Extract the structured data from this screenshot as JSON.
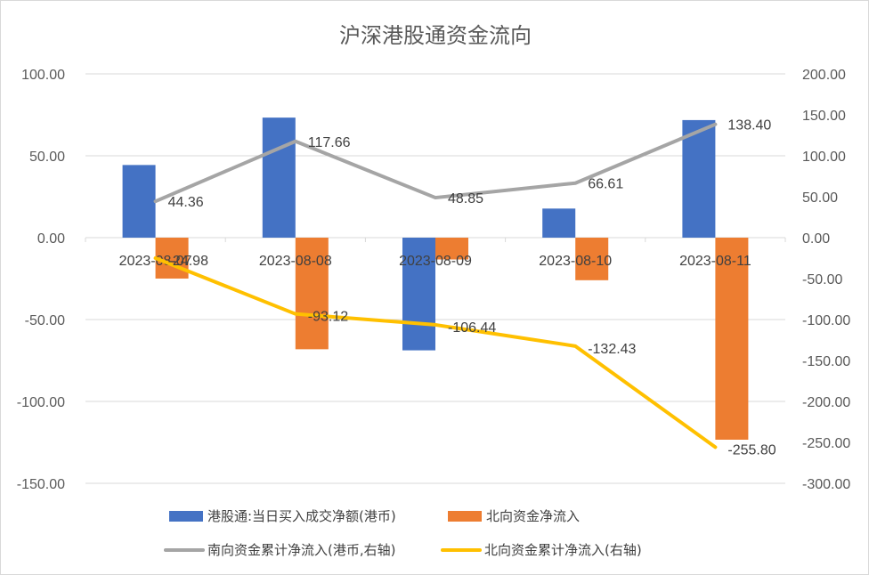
{
  "chart_data": {
    "type": "bar",
    "title": "沪深港股通资金流向",
    "categories": [
      "2023-08-07",
      "2023-08-08",
      "2023-08-09",
      "2023-08-10",
      "2023-08-11"
    ],
    "left_axis": {
      "ylim": [
        -150,
        100
      ],
      "ticks": [
        100,
        50,
        0,
        -50,
        -100,
        -150
      ],
      "tick_labels": [
        "100.00",
        "50.00",
        "0.00",
        "-50.00",
        "-100.00",
        "-150.00"
      ]
    },
    "right_axis": {
      "ylim": [
        -300,
        200
      ],
      "ticks": [
        200,
        150,
        100,
        50,
        0,
        -50,
        -100,
        -150,
        -200,
        -250,
        -300
      ],
      "tick_labels": [
        "200.00",
        "150.00",
        "100.00",
        "50.00",
        "0.00",
        "-50.00",
        "-100.00",
        "-150.00",
        "-200.00",
        "-250.00",
        "-300.00"
      ]
    },
    "grid": true,
    "legend_position": "bottom",
    "series": [
      {
        "name": "港股通:当日买入成交净额(港币)",
        "kind": "bar",
        "axis": "left",
        "color": "#4472C4",
        "values": [
          44.36,
          73.3,
          -68.8,
          17.76,
          71.79
        ]
      },
      {
        "name": "北向资金净流入",
        "kind": "bar",
        "axis": "left",
        "color": "#ED7D31",
        "values": [
          -24.98,
          -68.14,
          -13.32,
          -25.99,
          -123.37
        ]
      },
      {
        "name": "南向资金累计净流入(港币,右轴)",
        "kind": "line",
        "axis": "right",
        "color": "#A5A5A5",
        "values": [
          44.36,
          117.66,
          48.85,
          66.61,
          138.4
        ],
        "labels": [
          "44.36",
          "117.66",
          "48.85",
          "66.61",
          "138.40"
        ]
      },
      {
        "name": "北向资金累计净流入(右轴)",
        "kind": "line",
        "axis": "right",
        "color": "#FFC000",
        "values": [
          -24.98,
          -93.12,
          -106.44,
          -132.43,
          -255.8
        ],
        "labels": [
          "-24.98",
          "-93.12",
          "-106.44",
          "-132.43",
          "-255.80"
        ]
      }
    ]
  }
}
